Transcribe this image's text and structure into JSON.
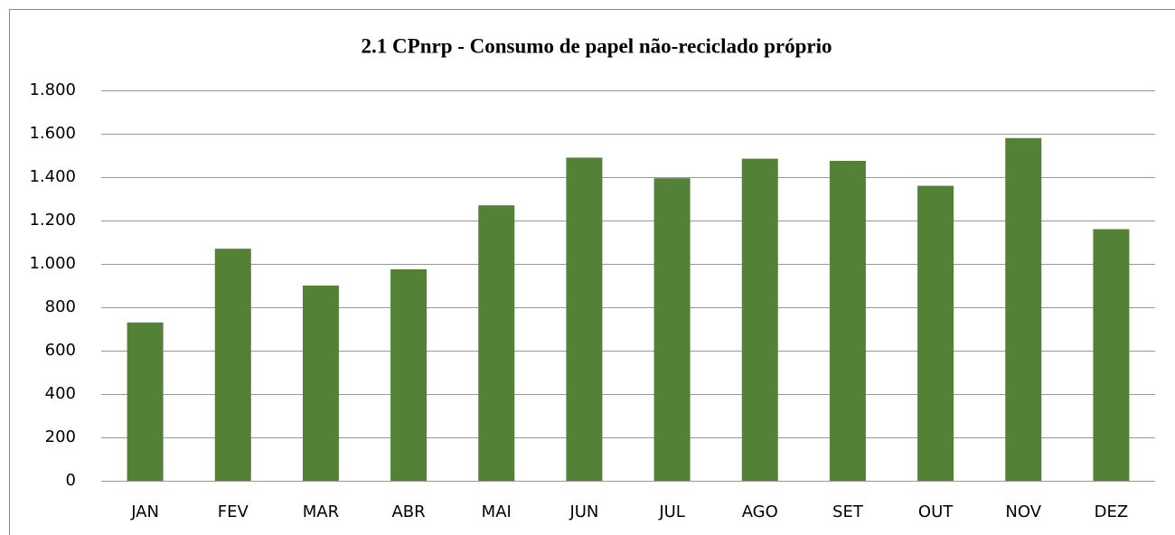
{
  "chart_data": {
    "type": "bar",
    "title": "2.1 CPnrp - Consumo de papel não-reciclado próprio",
    "categories": [
      "JAN",
      "FEV",
      "MAR",
      "ABR",
      "MAI",
      "JUN",
      "JUL",
      "AGO",
      "SET",
      "OUT",
      "NOV",
      "DEZ"
    ],
    "values": [
      730,
      1070,
      900,
      975,
      1270,
      1490,
      1395,
      1485,
      1475,
      1360,
      1580,
      1160
    ],
    "color": "#538135",
    "ylim": [
      0,
      1800
    ],
    "yticks": [
      0,
      200,
      400,
      600,
      800,
      {
        "value": 1000,
        "label": "1.000"
      },
      {
        "value": 1200,
        "label": "1.200"
      },
      {
        "value": 1400,
        "label": "1.400"
      },
      {
        "value": 1600,
        "label": "1.600"
      },
      {
        "value": 1800,
        "label": "1.800"
      }
    ],
    "grid": true
  }
}
